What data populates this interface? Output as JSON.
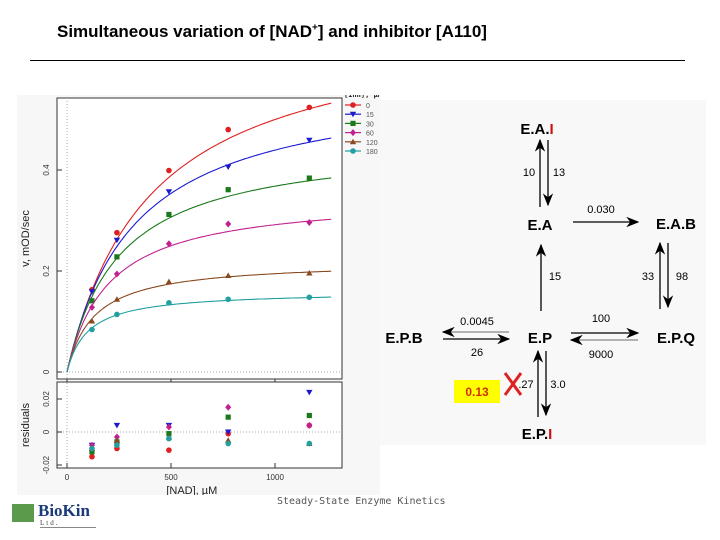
{
  "title": {
    "main": "Simultaneous variation of [NAD",
    "sup": "+",
    "rest": "] and inhibitor [A110]"
  },
  "footer": "Steady-State Enzyme Kinetics",
  "logo": {
    "name": "BioKin",
    "sub": "Ltd."
  },
  "chart_data": {
    "type": "scatter",
    "xlabel": "[NAD], µM",
    "ylabel": "v, mOD/sec",
    "residual_ylabel": "residuals",
    "legend_title": "[Inh], µM",
    "legend_position": "top-right",
    "xlim": [
      -20,
      1270
    ],
    "ylim": [
      0,
      0.56
    ],
    "residual_ylim": [
      -0.022,
      0.03
    ],
    "xticks": [
      "0",
      "500",
      "1000"
    ],
    "yticks": [
      "0",
      "0.2",
      "0.4"
    ],
    "residual_yticks": [
      "-0.02",
      "0",
      "0.02"
    ],
    "x": [
      120,
      240,
      490,
      775,
      1165
    ],
    "series": [
      {
        "name": "0",
        "color": "#e02020",
        "marker": "circle",
        "values": [
          0.163,
          0.276,
          0.399,
          0.48,
          0.524
        ],
        "residuals": [
          -0.015,
          -0.01,
          -0.011,
          -0.001,
          0.004
        ],
        "fit_vmax": 0.7,
        "fit_km": 400
      },
      {
        "name": "15",
        "color": "#1a1ad0",
        "marker": "triangle-down",
        "values": [
          0.159,
          0.261,
          0.357,
          0.406,
          0.459
        ],
        "residuals": [
          -0.008,
          0.004,
          0.004,
          0.0,
          0.024
        ],
        "fit_vmax": 0.58,
        "fit_km": 320
      },
      {
        "name": "30",
        "color": "#1a7a1a",
        "marker": "square",
        "values": [
          0.141,
          0.228,
          0.312,
          0.361,
          0.384
        ],
        "residuals": [
          -0.012,
          -0.006,
          -0.001,
          0.009,
          0.01
        ],
        "fit_vmax": 0.46,
        "fit_km": 250
      },
      {
        "name": "60",
        "color": "#c02090",
        "marker": "diamond",
        "values": [
          0.128,
          0.194,
          0.254,
          0.293,
          0.296
        ],
        "residuals": [
          -0.008,
          -0.003,
          0.003,
          0.015,
          0.004
        ],
        "fit_vmax": 0.35,
        "fit_km": 200
      },
      {
        "name": "120",
        "color": "#8a4a20",
        "marker": "triangle-up",
        "values": [
          0.101,
          0.144,
          0.179,
          0.191,
          0.196
        ],
        "residuals": [
          -0.01,
          -0.005,
          -0.003,
          -0.005,
          -0.007
        ],
        "fit_vmax": 0.22,
        "fit_km": 130
      },
      {
        "name": "180",
        "color": "#20a0a0",
        "marker": "circle",
        "values": [
          0.084,
          0.114,
          0.137,
          0.144,
          0.148
        ],
        "residuals": [
          -0.01,
          -0.008,
          -0.004,
          -0.007,
          -0.007
        ],
        "fit_vmax": 0.16,
        "fit_km": 100
      }
    ]
  },
  "diagram": {
    "species": {
      "eai": "E.A.",
      "ea": "E.A",
      "eab": "E.A.B",
      "epb": "E.P.B",
      "ep": "E.P",
      "epq": "E.P.Q",
      "epi": "E.P.",
      "inhibitor": "I"
    },
    "rates": {
      "ea_to_eai": "10",
      "eai_to_ea": "13",
      "ea_to_eab": "0.030",
      "ep_to_ea": "15",
      "epq_to_eab": "33",
      "eab_to_epq": "98",
      "ep_to_epb": "0.0045",
      "epb_to_ep": "26",
      "ep_to_epq": "100",
      "epq_to_ep": "9000",
      "epi_to_ep": ".27",
      "ep_to_epi": "3.0"
    },
    "correction": {
      "value": "0.13",
      "highlight": "#ffff00",
      "text_color": "#d03000",
      "cross_color": "#dd2222"
    },
    "inhibitor_color": "#cc1111"
  }
}
